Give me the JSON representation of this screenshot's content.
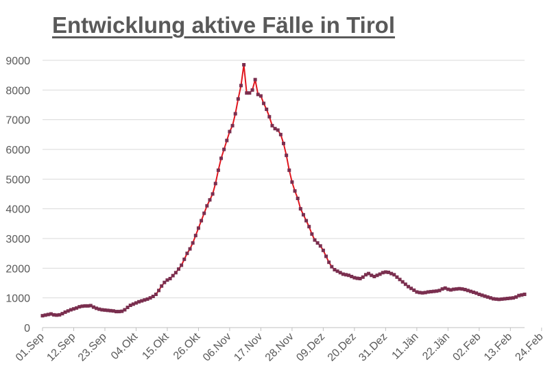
{
  "chart_data": {
    "type": "line",
    "title": "Entwicklung aktive Fälle in Tirol",
    "xlabel": "",
    "ylabel": "",
    "ylim": [
      0,
      9000
    ],
    "yticks": [
      0,
      1000,
      2000,
      3000,
      4000,
      5000,
      6000,
      7000,
      8000,
      9000
    ],
    "xticks": [
      "01.Sep",
      "12.Sep",
      "23.Sep",
      "04.Okt",
      "15.Okt",
      "26.Okt",
      "06.Nov",
      "17.Nov",
      "28.Nov",
      "09.Dez",
      "20.Dez",
      "31.Dez",
      "11.Jän",
      "22.Jän",
      "02.Feb",
      "13.Feb",
      "24.Feb"
    ],
    "grid": "horizontal",
    "legend": "none",
    "line_color": "#e0161e",
    "marker_color": "#7a2f4f",
    "series": [
      {
        "values": [
          400,
          420,
          440,
          460,
          430,
          420,
          430,
          470,
          520,
          560,
          600,
          630,
          660,
          700,
          720,
          730,
          730,
          740,
          690,
          650,
          620,
          600,
          590,
          580,
          570,
          560,
          540,
          540,
          550,
          600,
          680,
          750,
          790,
          830,
          870,
          900,
          930,
          960,
          1000,
          1050,
          1120,
          1250,
          1400,
          1520,
          1600,
          1650,
          1750,
          1850,
          1970,
          2100,
          2300,
          2500,
          2650,
          2850,
          3100,
          3350,
          3600,
          3850,
          4100,
          4300,
          4500,
          4850,
          5300,
          5700,
          6000,
          6300,
          6600,
          6800,
          7200,
          7700,
          8150,
          8850,
          7900,
          7900,
          8000,
          8350,
          7850,
          7800,
          7550,
          7350,
          7100,
          6800,
          6700,
          6650,
          6500,
          6200,
          5800,
          5300,
          4900,
          4600,
          4350,
          4000,
          3800,
          3600,
          3400,
          3150,
          2950,
          2850,
          2750,
          2600,
          2400,
          2200,
          2050,
          1950,
          1900,
          1850,
          1800,
          1780,
          1760,
          1720,
          1680,
          1660,
          1650,
          1700,
          1780,
          1820,
          1760,
          1720,
          1760,
          1800,
          1850,
          1870,
          1860,
          1820,
          1780,
          1700,
          1620,
          1540,
          1460,
          1380,
          1320,
          1260,
          1200,
          1180,
          1170,
          1180,
          1200,
          1210,
          1220,
          1230,
          1250,
          1300,
          1330,
          1290,
          1270,
          1290,
          1300,
          1310,
          1300,
          1280,
          1250,
          1220,
          1190,
          1160,
          1120,
          1090,
          1060,
          1030,
          1000,
          970,
          960,
          950,
          960,
          970,
          980,
          990,
          1000,
          1030,
          1080,
          1100,
          1120
        ]
      }
    ]
  }
}
